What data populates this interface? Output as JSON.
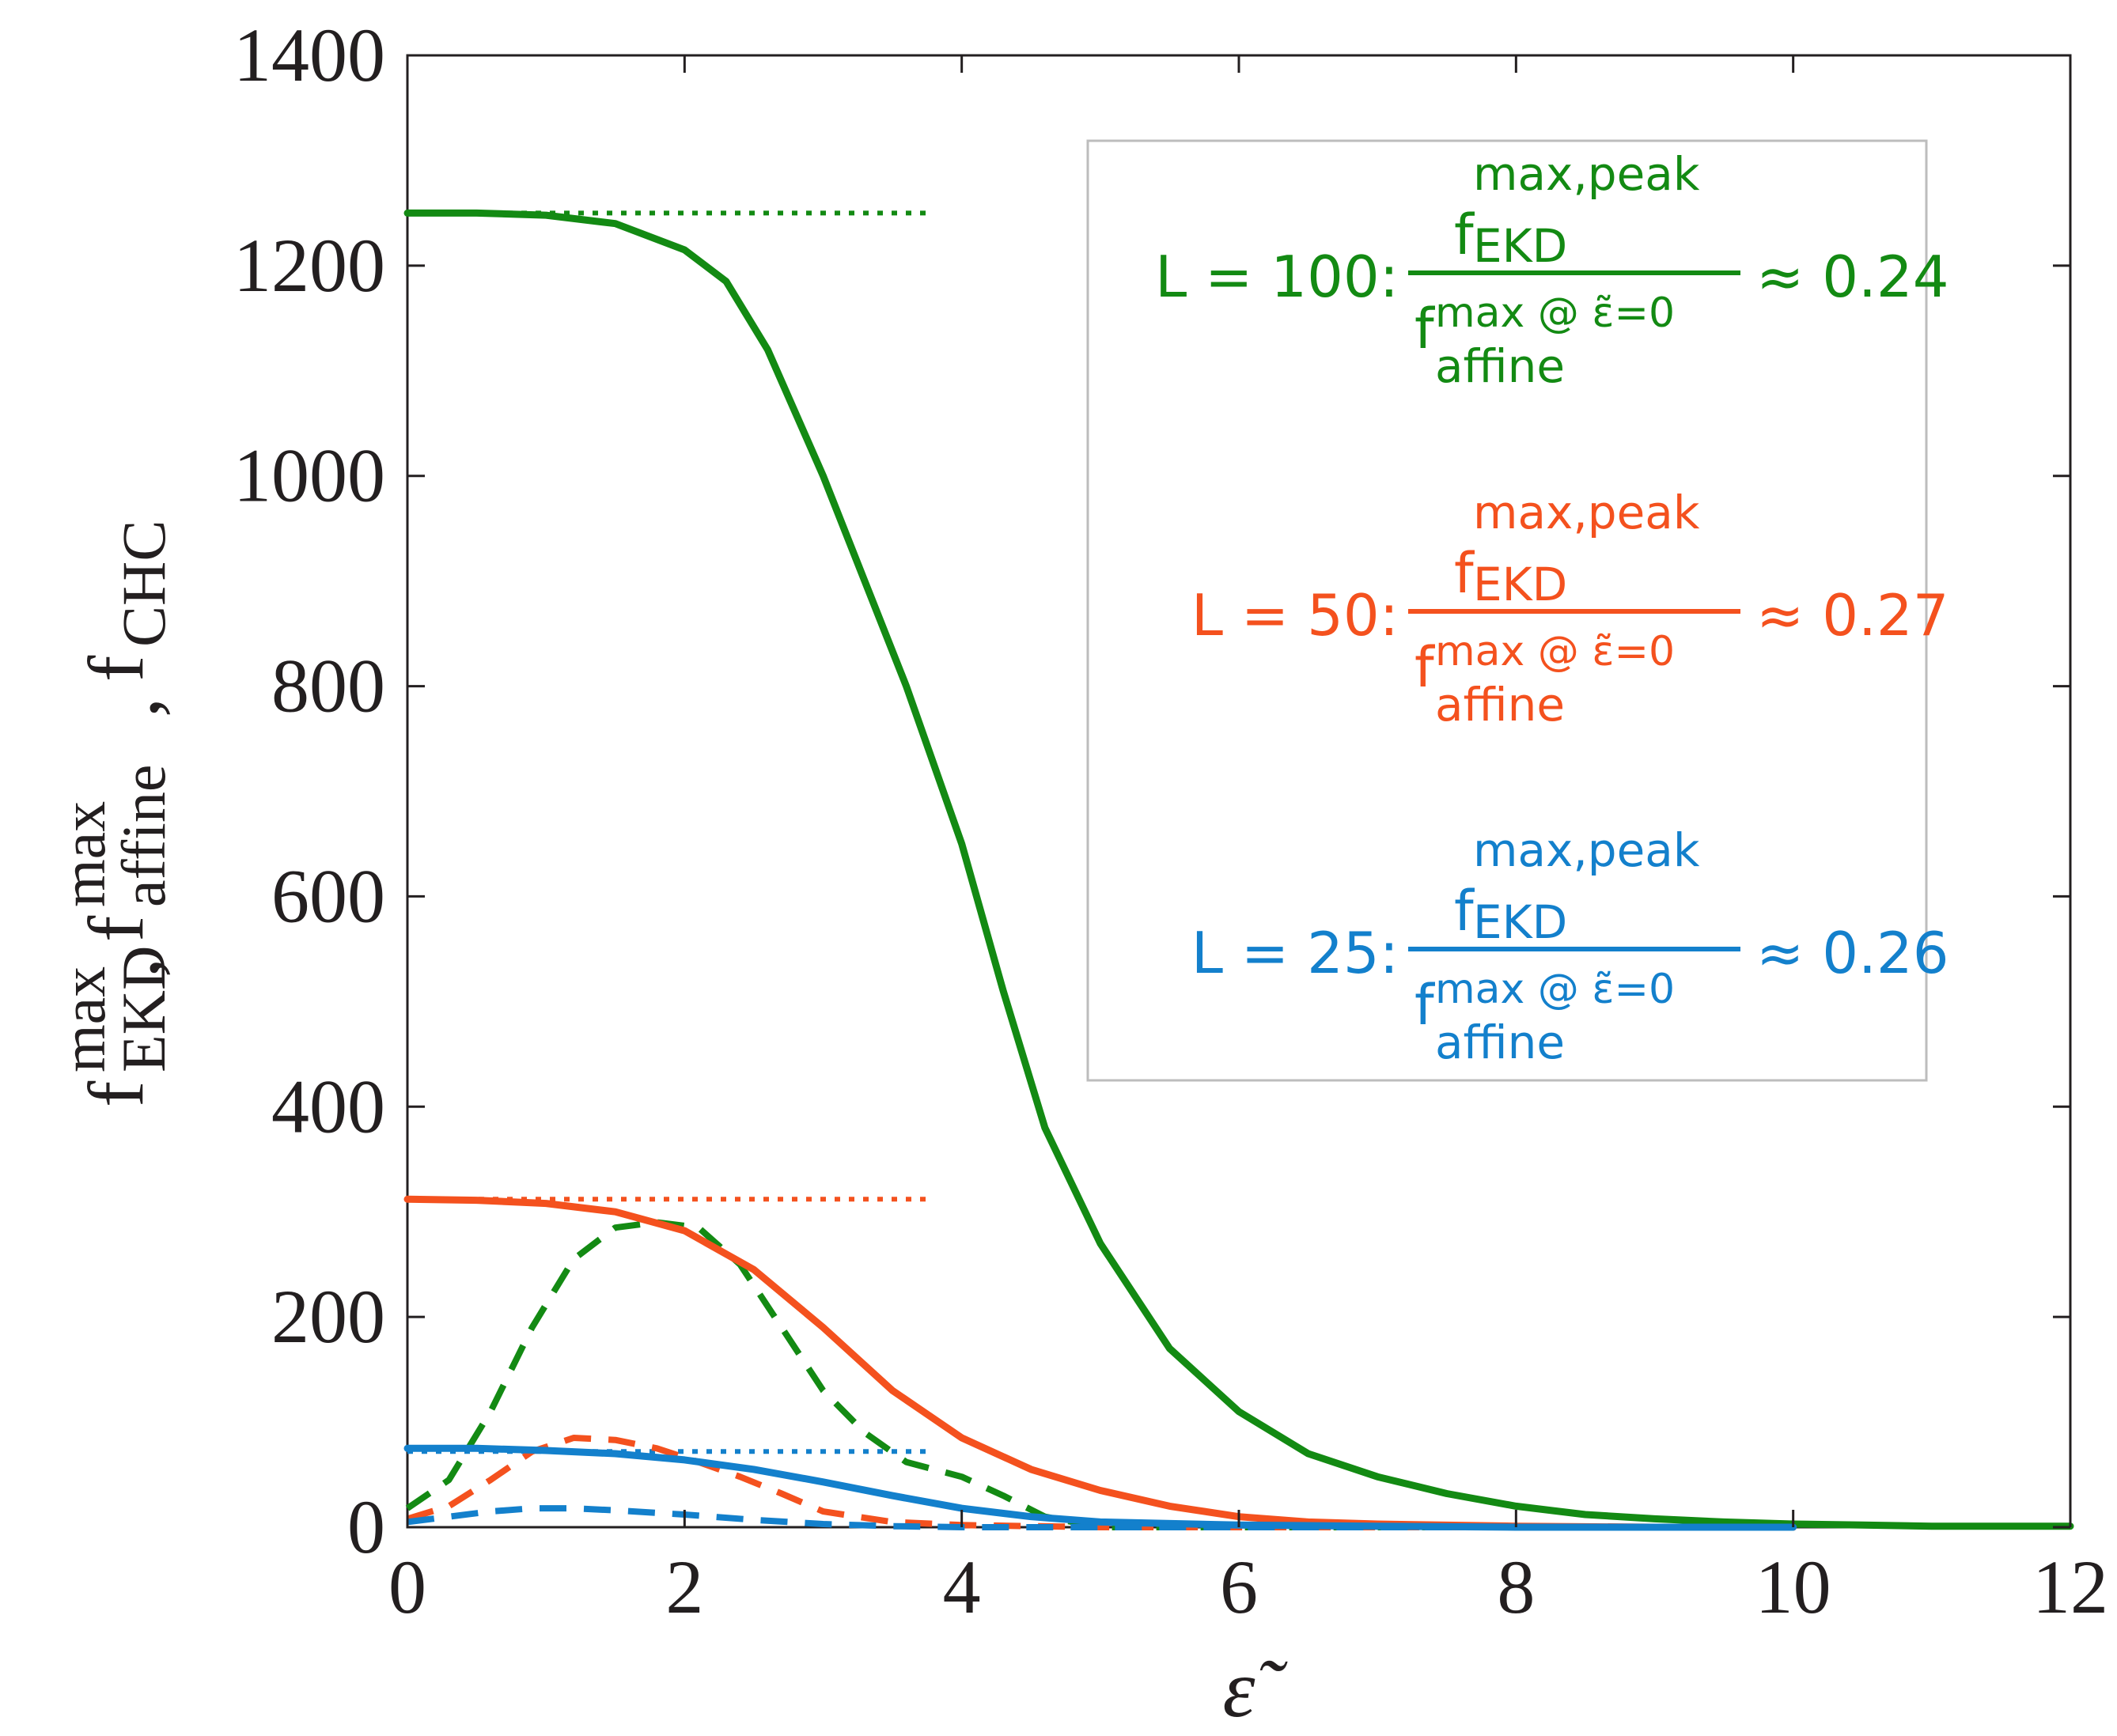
{
  "chart_data": {
    "type": "line",
    "title": "",
    "xlabel": "ε̃",
    "ylabel": {
      "parts": [
        {
          "base": "f",
          "sup": "max",
          "sub": "EKD"
        },
        {
          "base": "f",
          "sup": "max",
          "sub": "affine"
        },
        {
          "base": "f",
          "sup": "",
          "sub": "CHC"
        }
      ],
      "separator": ","
    },
    "xlim": [
      0,
      12
    ],
    "ylim": [
      0,
      1400
    ],
    "xticks": [
      0,
      2,
      4,
      6,
      8,
      10,
      12
    ],
    "yticks": [
      0,
      200,
      400,
      600,
      800,
      1000,
      1200,
      1400
    ],
    "grid": false,
    "legend_placement": "top-right",
    "colors": {
      "L100": "#138a13",
      "L50": "#f4511e",
      "L25": "#1380cc",
      "axis": "#231f20",
      "legend_border": "#bdbdbd"
    },
    "series": [
      {
        "name": "L = 100 max affine",
        "group": "L100",
        "style": "dotted",
        "x": [
          0,
          3.8
        ],
        "y": [
          1250,
          1250
        ]
      },
      {
        "name": "L = 100 max EKD",
        "group": "L100",
        "style": "solid",
        "x": [
          0,
          0.5,
          1.0,
          1.5,
          2.0,
          2.3,
          2.6,
          3.0,
          3.3,
          3.6,
          4.0,
          4.3,
          4.6,
          5.0,
          5.5,
          6.0,
          6.5,
          7.0,
          7.5,
          8.0,
          8.5,
          9.0,
          9.5,
          10.0,
          10.5,
          11.0,
          12.0
        ],
        "y": [
          1250,
          1250,
          1248,
          1240,
          1215,
          1185,
          1120,
          1000,
          900,
          800,
          650,
          510,
          380,
          270,
          170,
          110,
          70,
          48,
          32,
          20,
          12,
          8,
          5,
          3,
          2,
          1,
          1
        ]
      },
      {
        "name": "L = 100 CHC",
        "group": "L100",
        "style": "dashed",
        "x": [
          0,
          0.3,
          0.6,
          0.9,
          1.2,
          1.5,
          1.8,
          2.1,
          2.4,
          2.7,
          3.0,
          3.3,
          3.6,
          4.0,
          4.3,
          4.6,
          5.0,
          6.0,
          7.0,
          8.0,
          9.0,
          10.0
        ],
        "y": [
          18,
          45,
          110,
          190,
          255,
          285,
          290,
          285,
          250,
          190,
          130,
          90,
          62,
          48,
          30,
          10,
          0,
          0,
          0,
          0,
          0,
          0
        ]
      },
      {
        "name": "L = 50 max affine",
        "group": "L50",
        "style": "dotted",
        "x": [
          0,
          3.8
        ],
        "y": [
          312,
          312
        ]
      },
      {
        "name": "L = 50 max EKD",
        "group": "L50",
        "style": "solid",
        "x": [
          0,
          0.5,
          1.0,
          1.5,
          2.0,
          2.5,
          3.0,
          3.5,
          4.0,
          4.5,
          5.0,
          5.5,
          6.0,
          6.5,
          7.0,
          8.0,
          9.0,
          10.0
        ],
        "y": [
          312,
          311,
          308,
          300,
          282,
          245,
          190,
          130,
          85,
          55,
          35,
          20,
          10,
          5,
          3,
          1,
          0,
          0
        ]
      },
      {
        "name": "L = 50 CHC",
        "group": "L50",
        "style": "dashed",
        "x": [
          0,
          0.3,
          0.6,
          0.9,
          1.2,
          1.5,
          1.8,
          2.1,
          2.4,
          2.7,
          3.0,
          3.5,
          4.0,
          5.0,
          6.0,
          8.0,
          10.0
        ],
        "y": [
          8,
          20,
          45,
          72,
          85,
          83,
          75,
          62,
          48,
          32,
          15,
          5,
          2,
          0,
          0,
          0,
          0
        ]
      },
      {
        "name": "L = 25 max affine",
        "group": "L25",
        "style": "dotted",
        "x": [
          0,
          3.8
        ],
        "y": [
          72,
          72
        ]
      },
      {
        "name": "L = 25 max EKD",
        "group": "L25",
        "style": "solid",
        "x": [
          0,
          0.5,
          1.0,
          1.5,
          2.0,
          2.5,
          3.0,
          3.5,
          4.0,
          4.5,
          5.0,
          6.0,
          7.0,
          8.0,
          9.0,
          10.0
        ],
        "y": [
          75,
          75,
          73,
          70,
          64,
          55,
          43,
          30,
          18,
          10,
          5,
          2,
          1,
          0,
          0,
          0
        ]
      },
      {
        "name": "L = 25 CHC",
        "group": "L25",
        "style": "dashed",
        "x": [
          0,
          0.3,
          0.6,
          0.9,
          1.2,
          1.5,
          2.0,
          2.5,
          3.0,
          3.5,
          4.0,
          5.0,
          6.0,
          8.0,
          10.0
        ],
        "y": [
          5,
          10,
          15,
          18,
          18,
          16,
          12,
          7,
          3,
          1,
          0,
          0,
          0,
          0,
          0
        ]
      }
    ],
    "legend": [
      {
        "group": "L100",
        "prefix": "L = 100:",
        "num_base": "f",
        "num_sup": "max,peak",
        "num_sub": "EKD",
        "den_base": "f",
        "den_sup": "max @ ε̃=0",
        "den_sub": "affine",
        "suffix": "≈ 0.24"
      },
      {
        "group": "L50",
        "prefix": "L = 50:",
        "num_base": "f",
        "num_sup": "max,peak",
        "num_sub": "EKD",
        "den_base": "f",
        "den_sup": "max @ ε̃=0",
        "den_sub": "affine",
        "suffix": "≈ 0.27"
      },
      {
        "group": "L25",
        "prefix": "L = 25:",
        "num_base": "f",
        "num_sup": "max,peak",
        "num_sub": "EKD",
        "den_base": "f",
        "den_sup": "max @ ε̃=0",
        "den_sub": "affine",
        "suffix": "≈ 0.26"
      }
    ]
  }
}
